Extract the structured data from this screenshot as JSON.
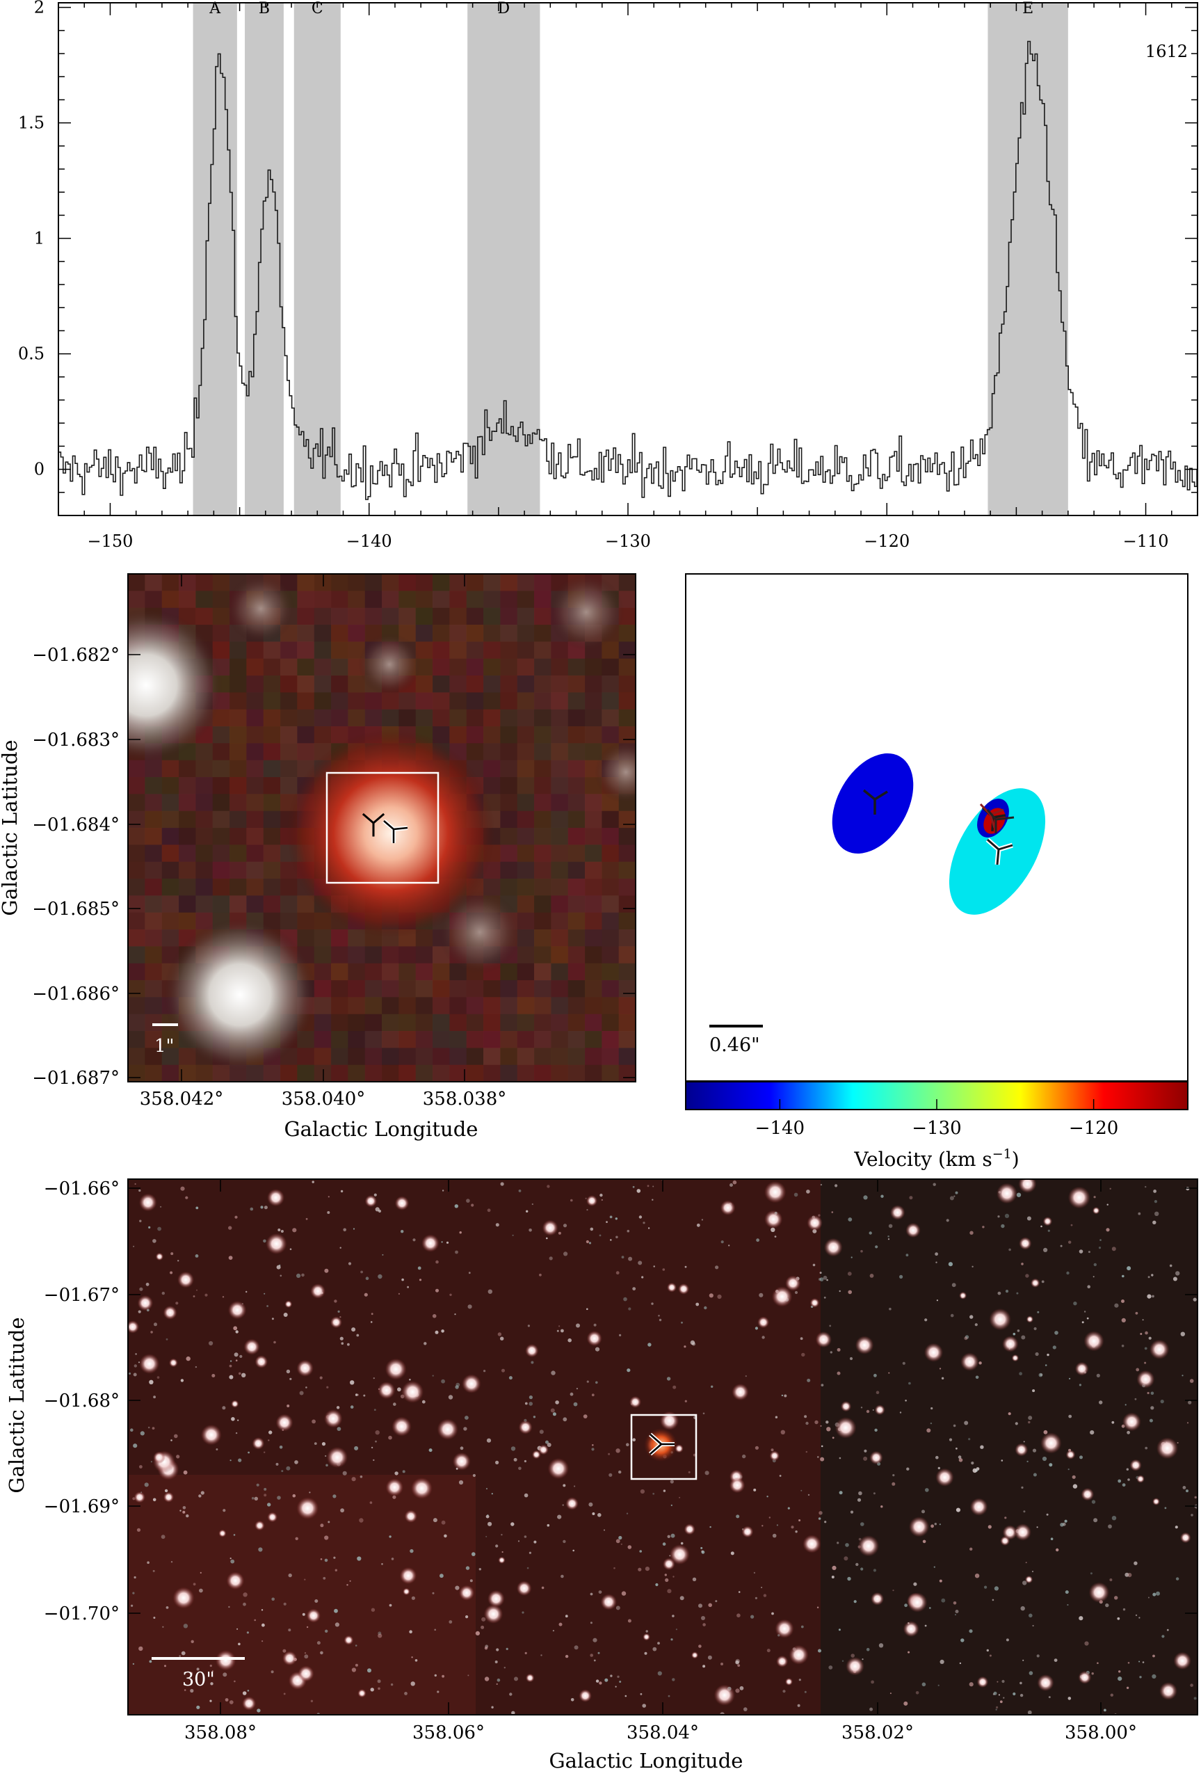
{
  "chart_data": [
    {
      "type": "line",
      "panel": "spectrum",
      "label": "1612",
      "xlim": [
        -152,
        -108
      ],
      "ylim": [
        -0.2,
        2.02
      ],
      "xticks": [
        -150,
        -140,
        -130,
        -120,
        -110
      ],
      "yticks": [
        0,
        0.5,
        1,
        1.5,
        2
      ],
      "ytick_labels": [
        "0",
        "0.5",
        "1",
        "1.5",
        "2"
      ],
      "bands": [
        {
          "label": "A",
          "x0": -146.8,
          "x1": -145.1
        },
        {
          "label": "B",
          "x0": -144.8,
          "x1": -143.3
        },
        {
          "label": "C",
          "x0": -142.9,
          "x1": -141.1
        },
        {
          "label": "D",
          "x0": -136.2,
          "x1": -133.4
        },
        {
          "label": "E",
          "x0": -116.1,
          "x1": -113.0
        }
      ],
      "peaks": [
        {
          "center": -145.8,
          "amp": 1.78,
          "sigma": 0.45
        },
        {
          "center": -143.9,
          "amp": 1.25,
          "sigma": 0.45
        },
        {
          "center": -142.3,
          "amp": 0.07,
          "sigma": 0.8
        },
        {
          "center": -134.6,
          "amp": 0.19,
          "sigma": 1.2
        },
        {
          "center": -114.4,
          "amp": 1.75,
          "sigma": 0.8
        }
      ],
      "noise_rms": 0.07
    },
    {
      "type": "image",
      "panel": "zoom",
      "ylabel": "Galactic Latitude",
      "xlabel": "Galactic Longitude",
      "xtick_labels": [
        "358.042°",
        "358.040°",
        "358.038°"
      ],
      "ytick_labels": [
        "−01.682°",
        "−01.683°",
        "−01.684°",
        "−01.685°",
        "−01.686°",
        "−01.687°"
      ],
      "scalebar_label": "1\""
    },
    {
      "type": "scatter",
      "panel": "velocity_map",
      "scalebar_label": "0.46\"",
      "colorbar": {
        "label": "Velocity (km s",
        "label_sup": "−1",
        "label_end": ")",
        "vmin": -146,
        "vmax": -114,
        "ticks": [
          -140,
          -130,
          -120
        ],
        "tick_labels": [
          "−140",
          "−130",
          "−120"
        ],
        "colors": [
          "#00008f",
          "#0000ff",
          "#00ffff",
          "#7fff7f",
          "#ffff00",
          "#ff0000",
          "#8f0000"
        ]
      },
      "spots": [
        {
          "velocity": -145.5,
          "color": "#0000e0"
        },
        {
          "velocity": -134.5,
          "color": "#00e5ee"
        },
        {
          "velocity": -114.5,
          "color": "#c00000"
        }
      ]
    },
    {
      "type": "image",
      "panel": "wide_field",
      "ylabel": "Galactic Latitude",
      "xlabel": "Galactic Longitude",
      "xtick_labels": [
        "358.08°",
        "358.06°",
        "358.04°",
        "358.02°",
        "358.00°"
      ],
      "ytick_labels": [
        "−01.66°",
        "−01.67°",
        "−01.68°",
        "−01.69°",
        "−01.70°"
      ],
      "scalebar_label": "30\""
    }
  ]
}
